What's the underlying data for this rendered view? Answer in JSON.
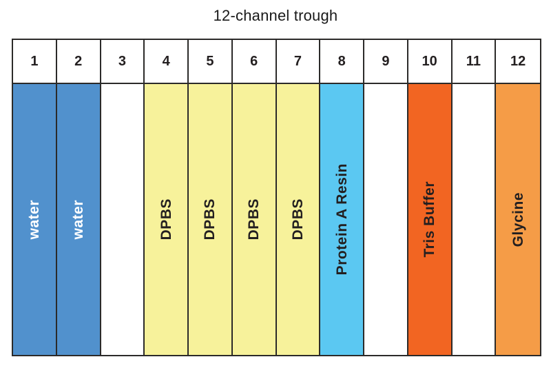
{
  "title": "12-channel trough",
  "colors": {
    "border": "#2b2a29",
    "water_blue": "#5191cd",
    "dpbs_yellow": "#f7f29b",
    "resin_cyan": "#5bc8f2",
    "tris_orange_red": "#f26522",
    "glycine_orange": "#f59c47",
    "label_dark": "#231f20",
    "label_light": "#ffffff",
    "empty": "#ffffff"
  },
  "channels": [
    {
      "number": "1",
      "label": "water",
      "fill": "#5191cd",
      "text_color": "#ffffff"
    },
    {
      "number": "2",
      "label": "water",
      "fill": "#5191cd",
      "text_color": "#ffffff"
    },
    {
      "number": "3",
      "label": "",
      "fill": "#ffffff",
      "text_color": "#231f20"
    },
    {
      "number": "4",
      "label": "DPBS",
      "fill": "#f7f29b",
      "text_color": "#231f20"
    },
    {
      "number": "5",
      "label": "DPBS",
      "fill": "#f7f29b",
      "text_color": "#231f20"
    },
    {
      "number": "6",
      "label": "DPBS",
      "fill": "#f7f29b",
      "text_color": "#231f20"
    },
    {
      "number": "7",
      "label": "DPBS",
      "fill": "#f7f29b",
      "text_color": "#231f20"
    },
    {
      "number": "8",
      "label": "Protein A Resin",
      "fill": "#5bc8f2",
      "text_color": "#231f20"
    },
    {
      "number": "9",
      "label": "",
      "fill": "#ffffff",
      "text_color": "#231f20"
    },
    {
      "number": "10",
      "label": "Tris Buffer",
      "fill": "#f26522",
      "text_color": "#231f20"
    },
    {
      "number": "11",
      "label": "",
      "fill": "#ffffff",
      "text_color": "#231f20"
    },
    {
      "number": "12",
      "label": "Glycine",
      "fill": "#f59c47",
      "text_color": "#231f20"
    }
  ]
}
